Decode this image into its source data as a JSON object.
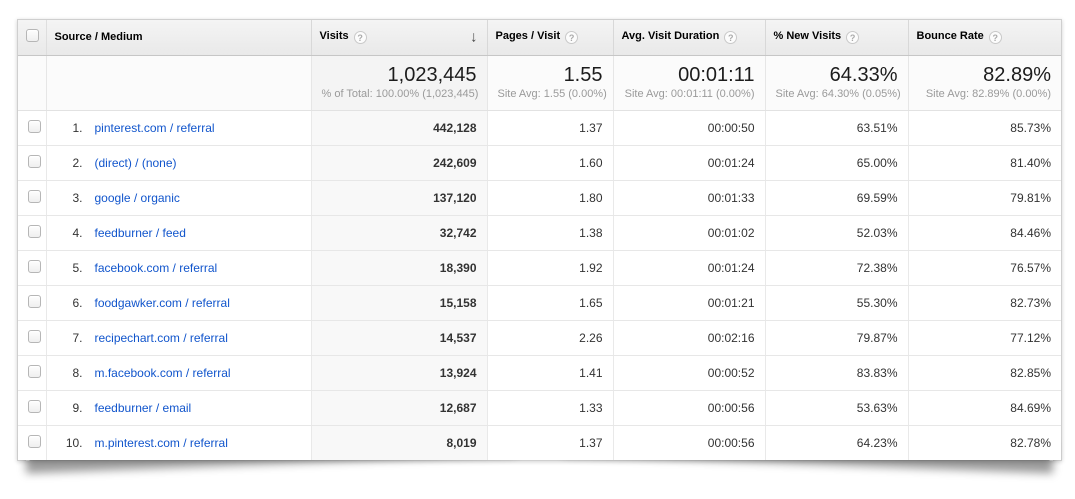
{
  "colors": {
    "link_blue": "#1155cc",
    "header_bg": "#eeeeee",
    "shaded_col": "#f8f8f8"
  },
  "icons": {
    "help": "?",
    "sort_descending": "↓"
  },
  "table": {
    "columns": {
      "source": {
        "label": "Source / Medium"
      },
      "visits": {
        "label": "Visits",
        "help": "?",
        "sorted": "descending"
      },
      "pages": {
        "label": "Pages / Visit",
        "help": "?"
      },
      "duration": {
        "label": "Avg. Visit Duration",
        "help": "?"
      },
      "new_visits": {
        "label": "% New Visits",
        "help": "?"
      },
      "bounce": {
        "label": "Bounce Rate",
        "help": "?"
      }
    },
    "summary": {
      "visits": "1,023,445",
      "visits_sub": "% of Total: 100.00% (1,023,445)",
      "pages": "1.55",
      "pages_sub": "Site Avg: 1.55 (0.00%)",
      "duration": "00:01:11",
      "duration_sub": "Site Avg: 00:01:11 (0.00%)",
      "new_visits": "64.33%",
      "new_visits_sub": "Site Avg: 64.30% (0.05%)",
      "bounce": "82.89%",
      "bounce_sub": "Site Avg: 82.89% (0.00%)"
    },
    "rows": [
      {
        "rank": "1.",
        "source": "pinterest.com / referral",
        "visits": "442,128",
        "pages": "1.37",
        "duration": "00:00:50",
        "new_visits": "63.51%",
        "bounce": "85.73%"
      },
      {
        "rank": "2.",
        "source": "(direct) / (none)",
        "visits": "242,609",
        "pages": "1.60",
        "duration": "00:01:24",
        "new_visits": "65.00%",
        "bounce": "81.40%"
      },
      {
        "rank": "3.",
        "source": "google / organic",
        "visits": "137,120",
        "pages": "1.80",
        "duration": "00:01:33",
        "new_visits": "69.59%",
        "bounce": "79.81%"
      },
      {
        "rank": "4.",
        "source": "feedburner / feed",
        "visits": "32,742",
        "pages": "1.38",
        "duration": "00:01:02",
        "new_visits": "52.03%",
        "bounce": "84.46%"
      },
      {
        "rank": "5.",
        "source": "facebook.com / referral",
        "visits": "18,390",
        "pages": "1.92",
        "duration": "00:01:24",
        "new_visits": "72.38%",
        "bounce": "76.57%"
      },
      {
        "rank": "6.",
        "source": "foodgawker.com / referral",
        "visits": "15,158",
        "pages": "1.65",
        "duration": "00:01:21",
        "new_visits": "55.30%",
        "bounce": "82.73%"
      },
      {
        "rank": "7.",
        "source": "recipechart.com / referral",
        "visits": "14,537",
        "pages": "2.26",
        "duration": "00:02:16",
        "new_visits": "79.87%",
        "bounce": "77.12%"
      },
      {
        "rank": "8.",
        "source": "m.facebook.com / referral",
        "visits": "13,924",
        "pages": "1.41",
        "duration": "00:00:52",
        "new_visits": "83.83%",
        "bounce": "82.85%"
      },
      {
        "rank": "9.",
        "source": "feedburner / email",
        "visits": "12,687",
        "pages": "1.33",
        "duration": "00:00:56",
        "new_visits": "53.63%",
        "bounce": "84.69%"
      },
      {
        "rank": "10.",
        "source": "m.pinterest.com / referral",
        "visits": "8,019",
        "pages": "1.37",
        "duration": "00:00:56",
        "new_visits": "64.23%",
        "bounce": "82.78%"
      }
    ]
  }
}
